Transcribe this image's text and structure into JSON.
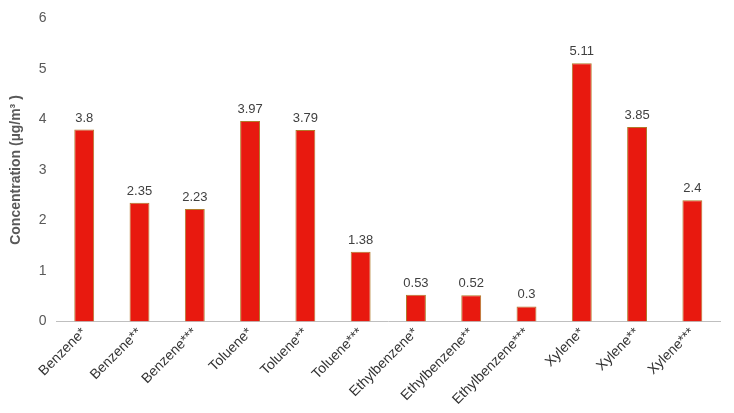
{
  "chart_data": {
    "type": "bar",
    "y_label": "Concentration (µg/m³ )",
    "categories": [
      "Benzene*",
      "Benzene**",
      "Benzene***",
      "Toluene*",
      "Toluene**",
      "Toluene***",
      "Ethylbenzene*",
      "Ethylbenzene**",
      "Ethylbenzene***",
      "Xylene*",
      "Xylene**",
      "Xylene***"
    ],
    "values": [
      3.8,
      2.35,
      2.23,
      3.97,
      3.79,
      1.38,
      0.53,
      0.52,
      0.3,
      5.11,
      3.85,
      2.4
    ],
    "color": "#e8190f",
    "ylim": [
      0,
      6
    ],
    "yticks": [
      0,
      1,
      2,
      3,
      4,
      5,
      6
    ],
    "grid": false,
    "data_labels": true
  }
}
